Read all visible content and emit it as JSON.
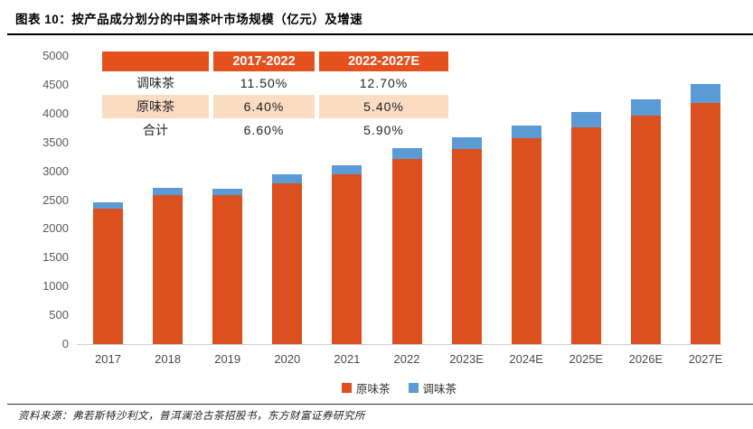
{
  "header": {
    "title": "图表 10：按产品成分划分的中国茶叶市场规模（亿元）及增速"
  },
  "growth_table": {
    "columns": [
      "",
      "2017-2022",
      "2022-2027E"
    ],
    "rows": [
      {
        "label": "调味茶",
        "values": [
          "11.50%",
          "12.70%"
        ]
      },
      {
        "label": "原味茶",
        "values": [
          "6.40%",
          "5.40%"
        ]
      },
      {
        "label": "合计",
        "values": [
          "6.60%",
          "5.90%"
        ]
      }
    ]
  },
  "chart_data": {
    "type": "bar",
    "stacked": true,
    "title": "按产品成分划分的中国茶叶市场规模（亿元）及增速",
    "xlabel": "",
    "ylabel": "",
    "unit": "亿元",
    "categories": [
      "2017",
      "2018",
      "2019",
      "2020",
      "2021",
      "2022",
      "2023E",
      "2024E",
      "2025E",
      "2026E",
      "2027E"
    ],
    "series": [
      {
        "name": "原味茶",
        "color": "#dc4f1e",
        "values": [
          2355,
          2585,
          2580,
          2785,
          2940,
          3215,
          3390,
          3570,
          3765,
          3965,
          4180
        ]
      },
      {
        "name": "调味茶",
        "color": "#5b9bd5",
        "values": [
          105,
          120,
          120,
          155,
          165,
          180,
          205,
          230,
          260,
          290,
          330
        ]
      }
    ],
    "ylim": [
      0,
      5000
    ],
    "yticks": [
      0,
      500,
      1000,
      1500,
      2000,
      2500,
      3000,
      3500,
      4000,
      4500,
      5000
    ],
    "grid": false,
    "legend_position": "bottom",
    "annotations": "CAGR table overlaid top-left: 调味茶 11.50% (2017-2022) / 12.70% (2022-2027E); 原味茶 6.40% / 5.40%; 合计 6.60% / 5.90%"
  },
  "footer": {
    "source": "资料来源：弗若斯特沙利文，普洱澜沧古茶招股书，东方财富证券研究所"
  },
  "colors": {
    "bar_original_tea": "#dc4f1e",
    "bar_flavored_tea": "#5b9bd5",
    "table_header_bg": "#e4511f",
    "table_alt_row_bg": "#fadcc2",
    "axis_text": "#595959"
  }
}
